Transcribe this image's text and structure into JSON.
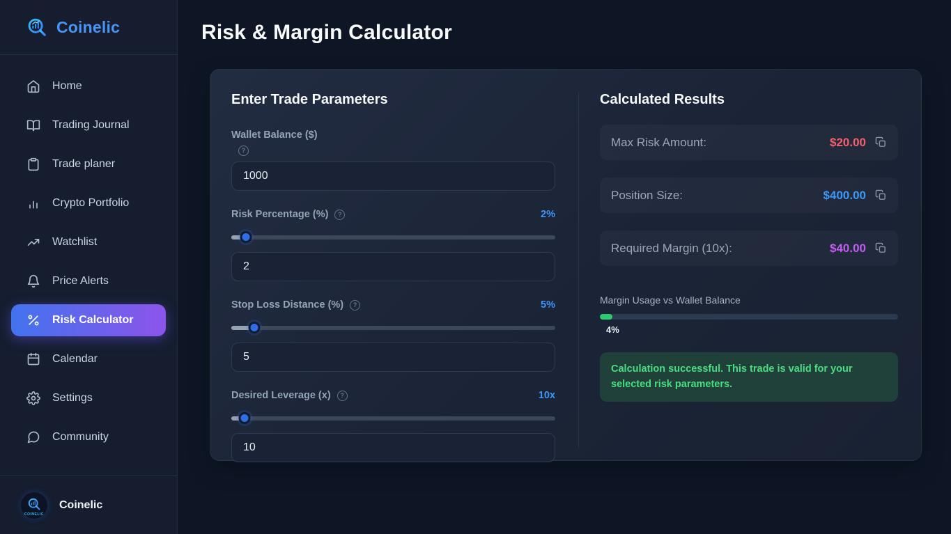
{
  "colors": {
    "accent_blue": "#4096f6",
    "active_gradient_start": "#4273ee",
    "active_gradient_end": "#8c54ea",
    "risk_red": "#f4606d",
    "position_blue": "#3b97f6",
    "margin_purple": "#c05cf0",
    "success_green": "#4ade80",
    "progress_green": "#2dc96f"
  },
  "sidebar": {
    "brand": "Coinelic",
    "items": [
      {
        "icon": "home-icon",
        "label": "Home"
      },
      {
        "icon": "book-open-icon",
        "label": "Trading Journal"
      },
      {
        "icon": "clipboard-icon",
        "label": "Trade planer"
      },
      {
        "icon": "bar-chart-icon",
        "label": "Crypto Portfolio"
      },
      {
        "icon": "trending-up-icon",
        "label": "Watchlist"
      },
      {
        "icon": "bell-icon",
        "label": "Price Alerts"
      },
      {
        "icon": "percent-icon",
        "label": "Risk Calculator"
      },
      {
        "icon": "calendar-icon",
        "label": "Calendar"
      },
      {
        "icon": "gear-icon",
        "label": "Settings"
      },
      {
        "icon": "chat-bubble-icon",
        "label": "Community"
      }
    ],
    "active_item": "Risk Calculator",
    "footer_logo_caption": "COINELIC",
    "footer_brand": "Coinelic"
  },
  "header": {
    "title": "Risk & Margin Calculator"
  },
  "calculator": {
    "params_heading": "Enter Trade Parameters",
    "fields": [
      {
        "label": "Wallet Balance ($)",
        "value": "1000"
      },
      {
        "label": "Risk Percentage (%)",
        "value": "2",
        "display": "2%",
        "slider_percent": 4.5
      },
      {
        "label": "Stop Loss Distance (%)",
        "value": "5",
        "display": "5%",
        "slider_percent": 7
      },
      {
        "label": "Desired Leverage (x)",
        "value": "10",
        "display": "10x",
        "slider_percent": 4
      }
    ],
    "results_heading": "Calculated Results",
    "results": [
      {
        "label": "Max Risk Amount:",
        "value": "$20.00",
        "color": "#f4606d"
      },
      {
        "label": "Position Size:",
        "value": "$400.00",
        "color": "#3b97f6"
      },
      {
        "label": "Required Margin (10x):",
        "value": "$40.00",
        "color": "#c05cf0"
      }
    ],
    "margin_usage": {
      "label": "Margin Usage vs Wallet Balance",
      "percent": 4,
      "percent_label": "4%"
    },
    "status": {
      "message": "Calculation successful. This trade is valid for your selected risk parameters."
    }
  }
}
